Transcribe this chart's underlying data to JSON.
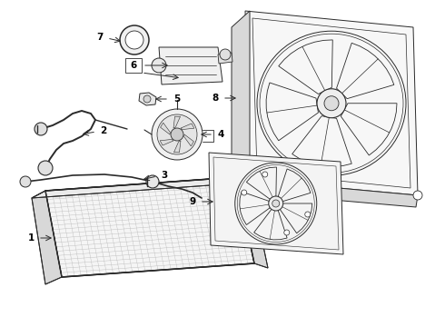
{
  "bg_color": "#ffffff",
  "line_color": "#2a2a2a",
  "fig_width": 4.9,
  "fig_height": 3.6,
  "dpi": 100,
  "lw": 0.7,
  "lw_heavy": 1.1,
  "gray_fill": "#f2f2f2",
  "mid_gray": "#d8d8d8",
  "dark_gray": "#c0c0c0"
}
